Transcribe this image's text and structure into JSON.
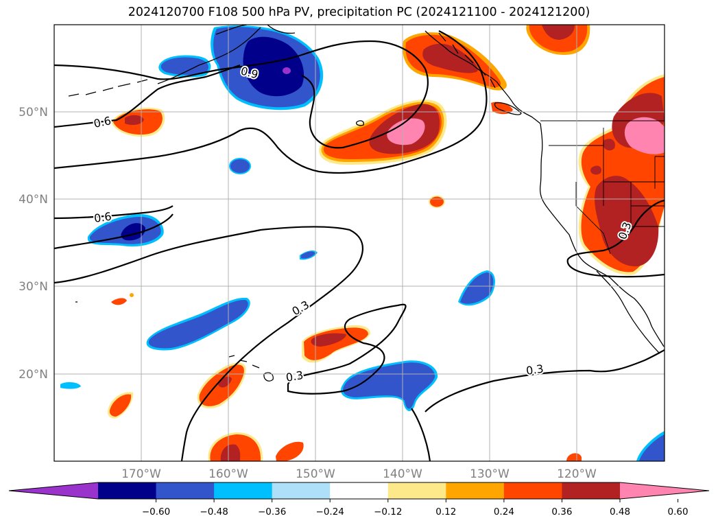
{
  "title": "2024120700 F108 500 hPa PV, precipitation PC (2024121100 - 2024121200)",
  "map": {
    "lon_range": [
      "180°",
      "110°W"
    ],
    "lat_range": [
      "10°N",
      "60°N"
    ],
    "gridlines": true,
    "lat_ticks": [
      "20°N",
      "30°N",
      "40°N",
      "50°N"
    ],
    "lon_ticks": [
      "170°W",
      "160°W",
      "150°W",
      "140°W",
      "130°W",
      "120°W"
    ],
    "contour_labels": [
      "0.6",
      "0.9",
      "0.6",
      "0.3",
      "0.3",
      "0.3",
      "0.3"
    ]
  },
  "colorbar": {
    "ticks": [
      "−0.60",
      "−0.48",
      "−0.36",
      "−0.24",
      "−0.12",
      "0.12",
      "0.24",
      "0.36",
      "0.48",
      "0.60"
    ],
    "colors": [
      "#9933cc",
      "#00008b",
      "#3355cc",
      "#00bfff",
      "#aee0fa",
      "#ffffff",
      "#fde98a",
      "#ffa500",
      "#ff4500",
      "#b22222",
      "#ff85b0"
    ],
    "extend": "both"
  },
  "colors": {
    "pos_light": "#ffa500",
    "pos_mid": "#ff4500",
    "pos_strong": "#b22222",
    "pos_max": "#ff85b0",
    "neg_light": "#00bfff",
    "neg_mid": "#3355cc",
    "neg_strong": "#00008b",
    "grid": "#b0b0b0",
    "tick_label": "#808080"
  }
}
